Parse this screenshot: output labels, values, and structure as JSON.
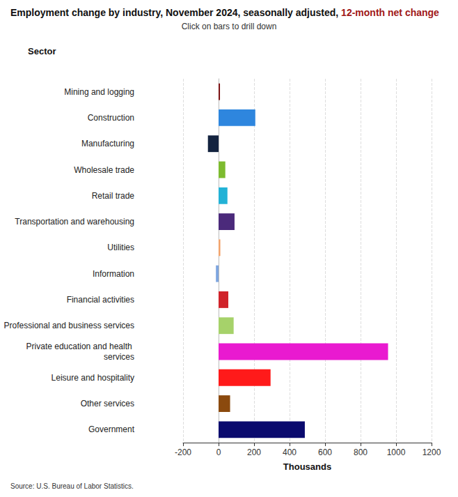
{
  "chart_data": {
    "type": "bar",
    "orientation": "horizontal",
    "title": "Employment change by industry, November 2024, seasonally adjusted, 12-month net change",
    "title_highlight": "12-month net change",
    "subtitle": "Click on bars to drill down",
    "y_label": "Sector",
    "x_label": "Thousands",
    "source": "Source: U.S. Bureau of Labor Statistics.",
    "categories": [
      "Mining and logging",
      "Construction",
      "Manufacturing",
      "Wholesale trade",
      "Retail trade",
      "Transportation and warehousing",
      "Utilities",
      "Information",
      "Financial activities",
      "Professional and business services",
      "Private education and health services",
      "Leisure and hospitality",
      "Other services",
      "Government"
    ],
    "values": [
      8,
      207,
      -60,
      38,
      50,
      90,
      10,
      -15,
      55,
      85,
      955,
      293,
      65,
      486
    ],
    "colors": [
      "#7b1113",
      "#2e86de",
      "#13233f",
      "#7dbb2f",
      "#22b2d6",
      "#4b2a7b",
      "#f2a36b",
      "#7ea6e0",
      "#d0232a",
      "#a6d26a",
      "#e91ad0",
      "#ff1a1a",
      "#8b4a0e",
      "#0a0a6e"
    ],
    "xlim": [
      -200,
      1200
    ],
    "xticks": [
      -200,
      0,
      200,
      400,
      600,
      800,
      1000,
      1200
    ],
    "grid": true
  }
}
